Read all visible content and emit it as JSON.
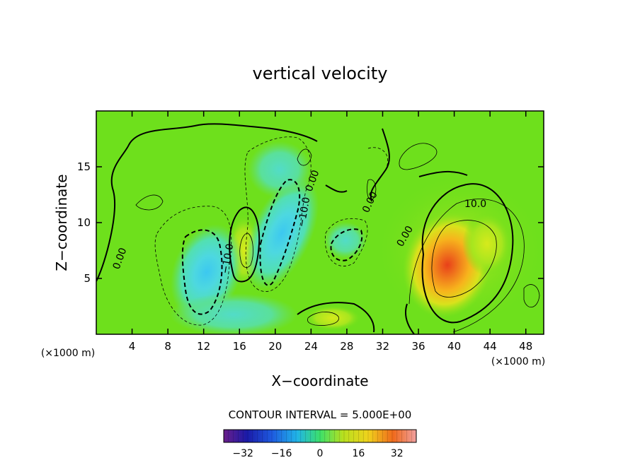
{
  "chart_data": {
    "type": "heatmap",
    "title": "vertical velocity",
    "xlabel": "X−coordinate",
    "ylabel": "Z−coordinate",
    "x_unit_label": "(×1000 m)",
    "z_unit_label": "(×1000 m)",
    "xlim": [
      0,
      50
    ],
    "ylim": [
      0,
      20
    ],
    "x_ticks": [
      4,
      8,
      12,
      16,
      20,
      24,
      28,
      32,
      36,
      40,
      44,
      48
    ],
    "y_ticks": [
      5,
      10,
      15
    ],
    "contour_interval_label": "CONTOUR INTERVAL = 5.000E+00",
    "contour_labels": [
      "0.00",
      "−10.0",
      "−10.0",
      "0.00",
      "0.00",
      "0.00",
      "10.0",
      "0.00"
    ],
    "colorbar": {
      "range": [
        -40,
        40
      ],
      "ticks": [
        -32,
        -16,
        0,
        16,
        32
      ],
      "tick_labels": [
        "−32",
        "−16",
        "0",
        "16",
        "32"
      ]
    },
    "features": [
      {
        "kind": "max",
        "x": 38.5,
        "z": 6.0,
        "value": 30
      },
      {
        "kind": "max",
        "x": 16.5,
        "z": 7.5,
        "value": 8
      },
      {
        "kind": "min",
        "x": 12.5,
        "z": 5.0,
        "value": -18
      },
      {
        "kind": "min",
        "x": 21.0,
        "z": 9.0,
        "value": -15
      },
      {
        "kind": "min",
        "x": 28.0,
        "z": 8.0,
        "value": -8
      }
    ]
  }
}
